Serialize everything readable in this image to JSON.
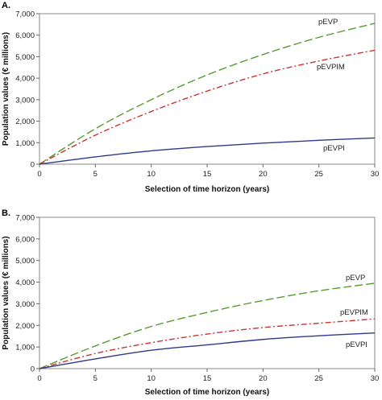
{
  "chart_data": [
    {
      "type": "line",
      "panel": "A.",
      "xlabel": "Selection of time horizon (years)",
      "ylabel": "Population values (€ millions)",
      "xlim": [
        0,
        30
      ],
      "ylim": [
        0,
        7000
      ],
      "xticks": [
        "0",
        "5",
        "10",
        "15",
        "20",
        "25",
        "30"
      ],
      "yticks": [
        "0",
        "1,000",
        "2,000",
        "3,000",
        "4,000",
        "5,000",
        "6,000",
        "7,000"
      ],
      "x": [
        0,
        5,
        10,
        15,
        20,
        25,
        30
      ],
      "series": [
        {
          "name": "pEVP",
          "color": "#5a9a32",
          "dash": "10,4",
          "values": [
            0,
            1650,
            3000,
            4150,
            5100,
            5900,
            6550
          ]
        },
        {
          "name": "pEVPIM",
          "color": "#cc3333",
          "dash": "7,3,2,3",
          "values": [
            0,
            1350,
            2450,
            3400,
            4200,
            4800,
            5300
          ]
        },
        {
          "name": "pEVPI",
          "color": "#2e3a87",
          "dash": "",
          "values": [
            0,
            340,
            620,
            820,
            980,
            1110,
            1220
          ]
        }
      ]
    },
    {
      "type": "line",
      "panel": "B.",
      "xlabel": "Selection of time horizon (years)",
      "ylabel": "Population values (€ millions)",
      "xlim": [
        0,
        30
      ],
      "ylim": [
        0,
        7000
      ],
      "xticks": [
        "0",
        "5",
        "10",
        "15",
        "20",
        "25",
        "30"
      ],
      "yticks": [
        "0",
        "1,000",
        "2,000",
        "3,000",
        "4,000",
        "5,000",
        "6,000",
        "7,000"
      ],
      "x": [
        0,
        5,
        10,
        15,
        20,
        25,
        30
      ],
      "series": [
        {
          "name": "pEVP",
          "color": "#5a9a32",
          "dash": "10,4",
          "values": [
            0,
            1050,
            1950,
            2600,
            3150,
            3600,
            3950
          ]
        },
        {
          "name": "pEVPIM",
          "color": "#cc3333",
          "dash": "7,3,2,3",
          "values": [
            0,
            700,
            1200,
            1600,
            1900,
            2100,
            2300
          ]
        },
        {
          "name": "pEVPI",
          "color": "#2e3a87",
          "dash": "",
          "values": [
            0,
            450,
            850,
            1100,
            1350,
            1520,
            1650
          ]
        }
      ]
    }
  ]
}
